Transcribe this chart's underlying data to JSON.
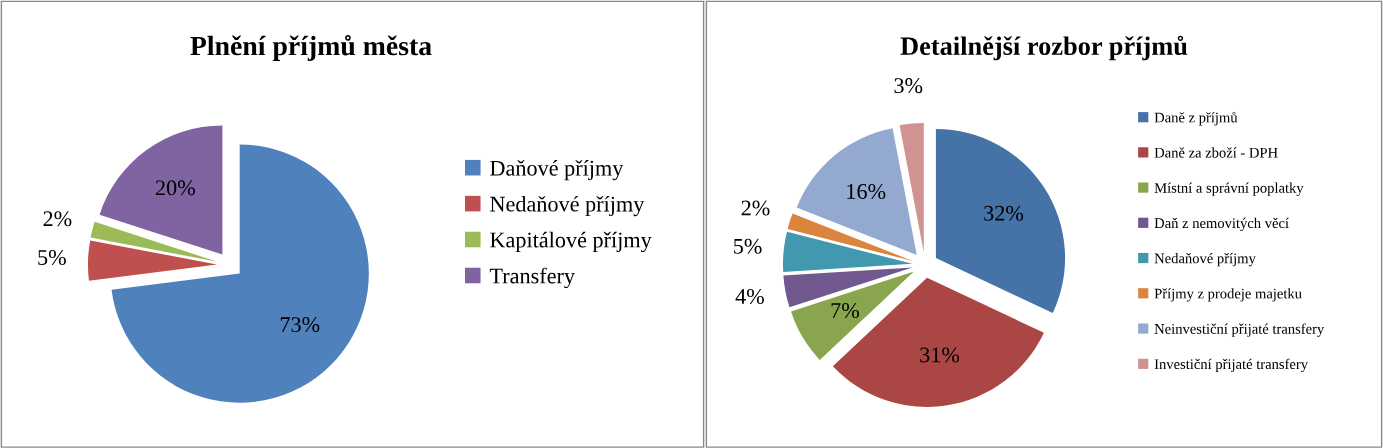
{
  "chart_data": [
    {
      "type": "pie",
      "title": "Plnění příjmů města",
      "categories": [
        "Daňové příjmy",
        "Nedaňové příjmy",
        "Kapitálové příjmy",
        "Transfery"
      ],
      "values": [
        73,
        5,
        2,
        20
      ],
      "colors": [
        "#4f81bd",
        "#c0504d",
        "#9bbb59",
        "#8064a2"
      ],
      "value_labels": [
        "73%",
        "5%",
        "2%",
        "20%"
      ],
      "legend": "right"
    },
    {
      "type": "pie",
      "title": "Detailnější rozbor příjmů",
      "categories": [
        "Daně z příjmů",
        "Daně za zboží - DPH",
        "Místní a správní poplatky",
        "Daň z nemovitých věcí",
        "Nedaňové příjmy",
        "Příjmy z prodeje majetku",
        "Neinvestiční přijaté transfery",
        "Investiční přijaté transfery"
      ],
      "values": [
        32,
        31,
        7,
        4,
        5,
        2,
        16,
        3
      ],
      "colors": [
        "#4572a7",
        "#aa4643",
        "#89a54e",
        "#71588f",
        "#4198af",
        "#db843d",
        "#93a9cf",
        "#d19392"
      ],
      "value_labels": [
        "32%",
        "31%",
        "7%",
        "4%",
        "5%",
        "2%",
        "16%",
        "3%"
      ],
      "legend": "right"
    }
  ]
}
